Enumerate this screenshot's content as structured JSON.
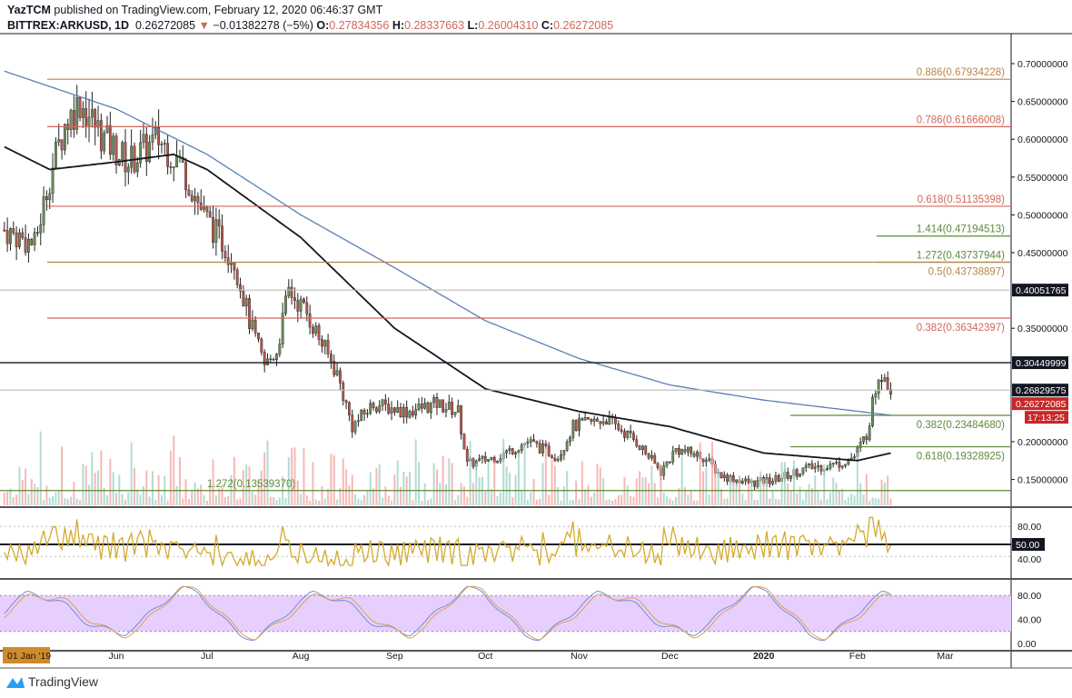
{
  "header": {
    "author": "YazTCM",
    "published": "published on TradingView.com, February 12, 2020 06:46:37 GMT",
    "symbol": "BITTREX:ARKUSD, 1D",
    "last": "0.26272085",
    "change": "−0.01382278 (−5%)",
    "o_label": "O:",
    "o": "0.27834356",
    "h_label": "H:",
    "h": "0.28337663",
    "l_label": "L:",
    "l": "0.26004310",
    "c_label": "C:",
    "c": "0.26272085"
  },
  "logo": "TradingView",
  "colors": {
    "up": "#6b8e5a",
    "down": "#b5564a",
    "ma200": "#5b7fb5",
    "ma100": "#131722",
    "rsi": "#d4aa2c",
    "stoch_band": "#e6cffc",
    "fib_red": "#d1675a",
    "fib_green": "#5d8a3a",
    "fib_brown": "#b8864b"
  },
  "chart_data": {
    "type": "candlestick",
    "price_axis": {
      "ticks": [
        "0.70000000",
        "0.65000000",
        "0.60000000",
        "0.55000000",
        "0.50000000",
        "0.45000000",
        "0.35000000",
        "0.20000000",
        "0.15000000"
      ],
      "ylim": [
        0.11,
        0.74
      ]
    },
    "time_axis": {
      "ticks": [
        "01 Jan '19",
        "Jun",
        "Jul",
        "Aug",
        "Sep",
        "Oct",
        "Nov",
        "Dec",
        "2020",
        "Feb",
        "Mar"
      ]
    },
    "price_path": [
      [
        "2019-04-25",
        0.48
      ],
      [
        "2019-05-05",
        0.46
      ],
      [
        "2019-05-10",
        0.55
      ],
      [
        "2019-05-15",
        0.62
      ],
      [
        "2019-05-20",
        0.65
      ],
      [
        "2019-05-28",
        0.6
      ],
      [
        "2019-06-05",
        0.57
      ],
      [
        "2019-06-15",
        0.6
      ],
      [
        "2019-06-22",
        0.57
      ],
      [
        "2019-06-30",
        0.5
      ],
      [
        "2019-07-05",
        0.47
      ],
      [
        "2019-07-10",
        0.44
      ],
      [
        "2019-07-15",
        0.36
      ],
      [
        "2019-07-20",
        0.3
      ],
      [
        "2019-07-24",
        0.32
      ],
      [
        "2019-07-28",
        0.4
      ],
      [
        "2019-08-03",
        0.37
      ],
      [
        "2019-08-08",
        0.33
      ],
      [
        "2019-08-13",
        0.29
      ],
      [
        "2019-08-18",
        0.22
      ],
      [
        "2019-08-25",
        0.25
      ],
      [
        "2019-09-05",
        0.24
      ],
      [
        "2019-09-15",
        0.25
      ],
      [
        "2019-09-22",
        0.24
      ],
      [
        "2019-09-25",
        0.17
      ],
      [
        "2019-10-05",
        0.18
      ],
      [
        "2019-10-15",
        0.2
      ],
      [
        "2019-10-25",
        0.18
      ],
      [
        "2019-10-30",
        0.22
      ],
      [
        "2019-11-10",
        0.23
      ],
      [
        "2019-11-20",
        0.2
      ],
      [
        "2019-11-28",
        0.16
      ],
      [
        "2019-12-03",
        0.19
      ],
      [
        "2019-12-12",
        0.18
      ],
      [
        "2019-12-18",
        0.155
      ],
      [
        "2019-12-28",
        0.145
      ],
      [
        "2020-01-05",
        0.15
      ],
      [
        "2020-01-15",
        0.165
      ],
      [
        "2020-01-25",
        0.17
      ],
      [
        "2020-01-31",
        0.18
      ],
      [
        "2020-02-04",
        0.21
      ],
      [
        "2020-02-08",
        0.29
      ],
      [
        "2020-02-10",
        0.29
      ],
      [
        "2020-02-12",
        0.2627
      ]
    ],
    "ma_blue": [
      [
        "2019-04-25",
        0.69
      ],
      [
        "2019-06-01",
        0.64
      ],
      [
        "2019-07-01",
        0.58
      ],
      [
        "2019-08-01",
        0.5
      ],
      [
        "2019-09-01",
        0.43
      ],
      [
        "2019-10-01",
        0.36
      ],
      [
        "2019-11-01",
        0.31
      ],
      [
        "2019-12-01",
        0.275
      ],
      [
        "2020-01-01",
        0.255
      ],
      [
        "2020-02-12",
        0.235
      ]
    ],
    "ma_black": [
      [
        "2019-04-25",
        0.59
      ],
      [
        "2019-05-10",
        0.56
      ],
      [
        "2019-06-01",
        0.57
      ],
      [
        "2019-06-20",
        0.58
      ],
      [
        "2019-07-01",
        0.56
      ],
      [
        "2019-08-01",
        0.47
      ],
      [
        "2019-09-01",
        0.35
      ],
      [
        "2019-10-01",
        0.27
      ],
      [
        "2019-11-01",
        0.24
      ],
      [
        "2019-12-01",
        0.22
      ],
      [
        "2020-01-01",
        0.185
      ],
      [
        "2020-02-01",
        0.175
      ],
      [
        "2020-02-12",
        0.185
      ]
    ],
    "levels": [
      {
        "label": "0.886(0.67934228)",
        "price": 0.67934228,
        "color": "brown",
        "full": true
      },
      {
        "label": "0.786(0.61666008)",
        "price": 0.61666008,
        "color": "red",
        "full": true
      },
      {
        "label": "0.618(0.51135398)",
        "price": 0.51135398,
        "color": "red",
        "full": true
      },
      {
        "label": "1.414(0.47194513)",
        "price": 0.47194513,
        "color": "green",
        "full": false
      },
      {
        "label": "1.272(0.43737944)",
        "price": 0.43737944,
        "color": "green",
        "full": false
      },
      {
        "label": "0.5(0.43738897)",
        "price": 0.43738897,
        "color": "brown",
        "full": true,
        "below": true
      },
      {
        "label": "",
        "price": 0.40051765,
        "color": "gray",
        "full": true
      },
      {
        "label": "0.382(0.36342397)",
        "price": 0.36342397,
        "color": "red",
        "full": true,
        "below": true
      },
      {
        "label": "",
        "price": 0.30449999,
        "color": "black",
        "full": true
      },
      {
        "label": "",
        "price": 0.26829575,
        "color": "gray",
        "full": true
      },
      {
        "label": "0.382(0.23484680)",
        "price": 0.2348468,
        "color": "green",
        "full": false,
        "below": true
      },
      {
        "label": "0.618(0.19328925)",
        "price": 0.19328925,
        "color": "green",
        "full": false,
        "below": true
      },
      {
        "label": "1.272(0.13539370)",
        "price": 0.1353937,
        "color": "green",
        "full": true,
        "left": true
      }
    ],
    "price_badges": [
      {
        "text": "0.40051765",
        "price": 0.40051765,
        "bg": "#131722"
      },
      {
        "text": "0.30449999",
        "price": 0.30449999,
        "bg": "#131722"
      },
      {
        "text": "0.26829575",
        "price": 0.26829575,
        "bg": "#131722"
      },
      {
        "text": "0.26272085",
        "price": 0.26272085,
        "bg": "#c62828"
      }
    ],
    "countdown": "17:13:25",
    "rsi": {
      "ticks": [
        "80.00",
        "40.00"
      ],
      "badge": "50.00",
      "level": 50
    },
    "stoch": {
      "ticks": [
        "80.00",
        "40.00",
        "0.00"
      ],
      "band": [
        20,
        80
      ]
    }
  }
}
